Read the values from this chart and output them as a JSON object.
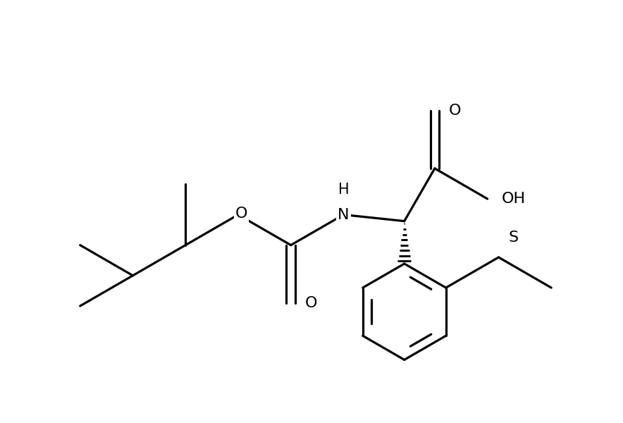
{
  "background_color": "#ffffff",
  "line_color": "#000000",
  "line_width": 2.3,
  "font_size": 16,
  "figsize": [
    8.84,
    6.0
  ],
  "dpi": 100,
  "xlim": [
    -1.2,
    8.5
  ],
  "ylim": [
    0.2,
    6.5
  ]
}
